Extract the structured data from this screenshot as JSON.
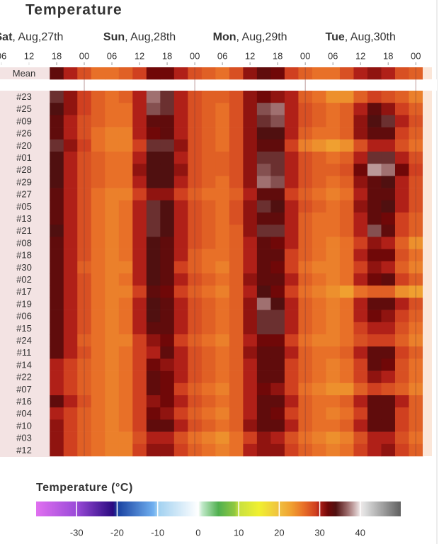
{
  "chart_data": {
    "type": "heatmap",
    "title": "Temperature",
    "xlim": [
      5.7,
      99.5
    ],
    "x": [
      18,
      21,
      24,
      27,
      30,
      33,
      36,
      39,
      42,
      45,
      48,
      51,
      54,
      57,
      60,
      63,
      66,
      69,
      72,
      75,
      78,
      81,
      84,
      87,
      90,
      93,
      96
    ],
    "xticks": [
      {
        "value": 6,
        "label": "06"
      },
      12,
      18,
      {
        "value": 24,
        "label": "00"
      },
      {
        "value": 30,
        "label": "06"
      },
      {
        "value": 36,
        "label": "12"
      },
      {
        "value": 42,
        "label": "18"
      },
      {
        "value": 48,
        "label": "00"
      },
      {
        "value": 54,
        "label": "06"
      },
      {
        "value": 60,
        "label": "12"
      },
      {
        "value": 66,
        "label": "18"
      },
      {
        "value": 72,
        "label": "00"
      },
      {
        "value": 78,
        "label": "06"
      },
      {
        "value": 84,
        "label": "12"
      },
      {
        "value": 90,
        "label": "18"
      },
      {
        "value": 96,
        "label": "00"
      }
    ],
    "day_labels": [
      {
        "value": 12,
        "bold": "Sat",
        "label": ", Aug,27th"
      },
      {
        "value": 36,
        "bold": "Sun",
        "label": ", Aug,28th"
      },
      {
        "value": 60,
        "bold": "Mon",
        "label": ", Aug,29th"
      },
      {
        "value": 84,
        "bold": "Tue",
        "label": ", Aug,30th"
      }
    ],
    "rows": [
      "Mean",
      "#23",
      "#25",
      "#09",
      "#26",
      "#20",
      "#01",
      "#28",
      "#29",
      "#27",
      "#05",
      "#13",
      "#21",
      "#08",
      "#18",
      "#30",
      "#02",
      "#17",
      "#19",
      "#06",
      "#15",
      "#24",
      "#11",
      "#14",
      "#22",
      "#07",
      "#16",
      "#04",
      "#10",
      "#03",
      "#12"
    ],
    "values": [
      [
        33,
        30,
        28,
        26,
        26,
        27,
        29,
        32,
        32,
        30,
        28,
        27,
        26,
        28,
        31,
        33,
        32,
        29,
        27,
        26,
        26,
        28,
        30,
        31,
        30,
        28,
        27
      ],
      [
        35,
        31,
        29,
        27,
        26,
        27,
        30,
        37,
        35,
        30,
        28,
        27,
        27,
        28,
        31,
        32,
        31,
        30,
        27,
        26,
        24,
        24,
        27,
        29,
        28,
        27,
        25
      ],
      [
        34,
        31,
        29,
        27,
        26,
        26,
        30,
        36,
        35,
        30,
        28,
        27,
        26,
        28,
        31,
        36,
        37,
        30,
        28,
        27,
        26,
        27,
        30,
        33,
        31,
        29,
        27
      ],
      [
        33,
        30,
        28,
        27,
        26,
        26,
        30,
        33,
        33,
        30,
        28,
        27,
        26,
        28,
        31,
        35,
        36,
        30,
        28,
        27,
        26,
        27,
        31,
        34,
        35,
        30,
        28
      ],
      [
        33,
        30,
        28,
        26,
        25,
        25,
        30,
        32,
        33,
        30,
        28,
        27,
        26,
        28,
        31,
        34,
        34,
        30,
        27,
        26,
        26,
        27,
        31,
        33,
        33,
        29,
        27
      ],
      [
        35,
        31,
        29,
        26,
        25,
        25,
        29,
        35,
        35,
        31,
        28,
        27,
        26,
        28,
        31,
        33,
        33,
        29,
        25,
        24,
        23,
        24,
        28,
        30,
        30,
        28,
        26
      ],
      [
        34,
        30,
        28,
        27,
        26,
        26,
        30,
        34,
        34,
        30,
        28,
        27,
        27,
        28,
        31,
        35,
        35,
        30,
        28,
        27,
        26,
        27,
        30,
        35,
        35,
        30,
        28
      ],
      [
        34,
        30,
        28,
        27,
        26,
        26,
        31,
        34,
        34,
        31,
        28,
        27,
        27,
        28,
        31,
        36,
        35,
        30,
        28,
        27,
        27,
        28,
        32,
        38,
        37,
        32,
        29
      ],
      [
        34,
        30,
        28,
        27,
        26,
        26,
        30,
        34,
        34,
        30,
        28,
        27,
        26,
        28,
        31,
        37,
        36,
        30,
        28,
        27,
        26,
        27,
        31,
        33,
        34,
        30,
        28
      ],
      [
        33,
        30,
        28,
        26,
        25,
        25,
        29,
        31,
        31,
        29,
        27,
        26,
        26,
        27,
        30,
        33,
        33,
        29,
        27,
        26,
        25,
        26,
        30,
        33,
        33,
        30,
        28
      ],
      [
        33,
        30,
        28,
        26,
        25,
        26,
        30,
        35,
        34,
        30,
        28,
        27,
        26,
        28,
        31,
        35,
        34,
        30,
        28,
        27,
        26,
        27,
        31,
        33,
        34,
        30,
        28
      ],
      [
        33,
        30,
        28,
        26,
        25,
        26,
        30,
        35,
        34,
        30,
        28,
        27,
        26,
        28,
        31,
        33,
        33,
        30,
        27,
        26,
        26,
        27,
        30,
        33,
        32,
        29,
        27
      ],
      [
        34,
        30,
        28,
        26,
        25,
        26,
        30,
        35,
        34,
        30,
        28,
        27,
        26,
        27,
        31,
        35,
        35,
        30,
        27,
        26,
        26,
        27,
        30,
        36,
        33,
        29,
        27
      ],
      [
        33,
        30,
        28,
        26,
        25,
        26,
        30,
        34,
        33,
        30,
        28,
        27,
        26,
        27,
        30,
        33,
        32,
        30,
        27,
        26,
        25,
        26,
        29,
        31,
        30,
        27,
        24
      ],
      [
        33,
        30,
        28,
        26,
        25,
        26,
        30,
        34,
        33,
        30,
        27,
        26,
        26,
        27,
        30,
        33,
        33,
        29,
        27,
        26,
        25,
        26,
        30,
        32,
        32,
        28,
        26
      ],
      [
        33,
        30,
        27,
        26,
        25,
        25,
        30,
        34,
        33,
        29,
        27,
        26,
        25,
        27,
        30,
        33,
        32,
        29,
        26,
        25,
        25,
        26,
        29,
        31,
        30,
        27,
        25
      ],
      [
        33,
        30,
        28,
        26,
        25,
        26,
        30,
        34,
        33,
        30,
        28,
        27,
        26,
        27,
        31,
        33,
        33,
        30,
        27,
        26,
        25,
        26,
        30,
        32,
        33,
        29,
        27
      ],
      [
        33,
        30,
        28,
        26,
        25,
        25,
        29,
        33,
        32,
        29,
        27,
        26,
        25,
        27,
        30,
        34,
        32,
        29,
        26,
        25,
        24,
        23,
        26,
        27,
        27,
        24,
        23
      ],
      [
        33,
        30,
        28,
        26,
        25,
        26,
        30,
        34,
        33,
        30,
        28,
        27,
        26,
        27,
        31,
        37,
        34,
        30,
        27,
        26,
        25,
        26,
        30,
        33,
        33,
        30,
        28
      ],
      [
        33,
        30,
        28,
        26,
        25,
        26,
        30,
        34,
        33,
        30,
        28,
        27,
        26,
        27,
        31,
        35,
        35,
        30,
        27,
        26,
        25,
        26,
        30,
        32,
        31,
        29,
        27
      ],
      [
        33,
        30,
        28,
        26,
        25,
        26,
        30,
        33,
        33,
        30,
        28,
        27,
        26,
        27,
        31,
        35,
        35,
        30,
        27,
        26,
        25,
        26,
        29,
        30,
        30,
        28,
        26
      ],
      [
        33,
        30,
        27,
        26,
        25,
        25,
        29,
        31,
        32,
        29,
        27,
        26,
        25,
        27,
        30,
        32,
        32,
        29,
        26,
        25,
        25,
        26,
        28,
        29,
        29,
        27,
        25
      ],
      [
        33,
        30,
        28,
        26,
        25,
        26,
        29,
        30,
        33,
        30,
        28,
        27,
        26,
        27,
        31,
        33,
        33,
        30,
        27,
        26,
        26,
        27,
        30,
        33,
        33,
        29,
        27
      ],
      [
        30,
        29,
        27,
        26,
        25,
        26,
        29,
        32,
        31,
        30,
        28,
        27,
        26,
        27,
        30,
        33,
        33,
        29,
        27,
        26,
        25,
        26,
        29,
        33,
        32,
        28,
        26
      ],
      [
        30,
        29,
        27,
        26,
        25,
        26,
        29,
        33,
        32,
        30,
        28,
        27,
        26,
        27,
        30,
        33,
        33,
        29,
        27,
        26,
        25,
        26,
        29,
        31,
        30,
        28,
        26
      ],
      [
        30,
        29,
        27,
        26,
        25,
        26,
        29,
        33,
        32,
        29,
        27,
        26,
        25,
        27,
        30,
        32,
        31,
        29,
        26,
        25,
        24,
        24,
        27,
        29,
        28,
        27,
        25
      ],
      [
        33,
        30,
        28,
        26,
        25,
        26,
        29,
        31,
        32,
        30,
        28,
        27,
        26,
        27,
        30,
        33,
        33,
        30,
        27,
        26,
        26,
        27,
        30,
        33,
        33,
        30,
        27
      ],
      [
        30,
        29,
        27,
        26,
        25,
        26,
        29,
        32,
        31,
        29,
        27,
        26,
        25,
        27,
        30,
        33,
        32,
        29,
        27,
        26,
        25,
        26,
        29,
        33,
        33,
        29,
        27
      ],
      [
        31,
        29,
        27,
        26,
        25,
        26,
        29,
        33,
        33,
        30,
        28,
        27,
        26,
        27,
        31,
        33,
        33,
        30,
        27,
        26,
        26,
        27,
        30,
        33,
        33,
        29,
        27
      ],
      [
        31,
        29,
        27,
        26,
        25,
        25,
        28,
        30,
        30,
        28,
        26,
        25,
        24,
        26,
        29,
        31,
        30,
        28,
        26,
        25,
        24,
        25,
        28,
        30,
        30,
        28,
        26
      ],
      [
        31,
        29,
        27,
        26,
        25,
        25,
        29,
        31,
        31,
        29,
        27,
        26,
        25,
        26,
        30,
        31,
        31,
        29,
        27,
        26,
        25,
        26,
        29,
        30,
        31,
        29,
        27
      ]
    ],
    "colorbar": {
      "title": "Temperature (°C)",
      "lim": [
        -40,
        50
      ],
      "ticks": [
        -30,
        -20,
        -10,
        0,
        10,
        20,
        30,
        40
      ],
      "stops": [
        [
          -40,
          "#e070f0"
        ],
        [
          -30,
          "#9a4ad8"
        ],
        [
          -21,
          "#2a0a80"
        ],
        [
          -20,
          "#1840a0"
        ],
        [
          -11,
          "#70b0f0"
        ],
        [
          -10,
          "#a0d0f0"
        ],
        [
          0,
          "#ffffff"
        ],
        [
          1,
          "#c0e8c8"
        ],
        [
          5,
          "#50b050"
        ],
        [
          9,
          "#90c840"
        ],
        [
          10,
          "#c8e040"
        ],
        [
          15,
          "#f0f030"
        ],
        [
          20,
          "#f0c040"
        ],
        [
          23,
          "#f0a030"
        ],
        [
          26,
          "#e87028"
        ],
        [
          29,
          "#d04020"
        ],
        [
          30,
          "#b02018"
        ],
        [
          32,
          "#700808"
        ],
        [
          34,
          "#501010"
        ],
        [
          37,
          "#a07070"
        ],
        [
          40,
          "#f0e8e8"
        ],
        [
          41,
          "#e0e0e0"
        ],
        [
          50,
          "#606060"
        ]
      ]
    }
  }
}
